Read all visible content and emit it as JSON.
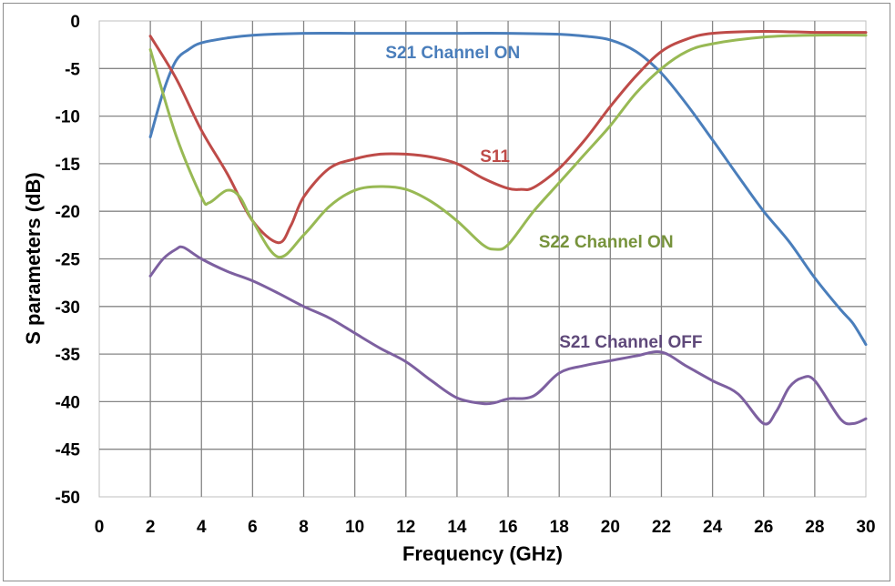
{
  "chart_data": {
    "type": "line",
    "title": "",
    "xlabel": "Frequency (GHz)",
    "ylabel": "S parameters (dB)",
    "xlim": [
      0,
      30
    ],
    "ylim": [
      -50,
      0
    ],
    "xticks": [
      0,
      2,
      4,
      6,
      8,
      10,
      12,
      14,
      16,
      18,
      20,
      22,
      24,
      26,
      28,
      30
    ],
    "yticks": [
      0,
      -5,
      -10,
      -15,
      -20,
      -25,
      -30,
      -35,
      -40,
      -45,
      -50
    ],
    "grid": true,
    "legend": "inline labels",
    "series": [
      {
        "name": "S21 Channel ON",
        "color": "#4a7ebb",
        "label_pos": [
          11.2,
          -3.9
        ],
        "x": [
          2,
          2.5,
          3,
          3.5,
          4,
          5,
          6,
          8,
          10,
          12,
          14,
          16,
          18,
          19,
          20,
          21,
          22,
          23,
          24,
          25,
          26,
          27,
          28,
          29,
          29.5,
          30
        ],
        "y": [
          -12.2,
          -7.5,
          -4.2,
          -3.0,
          -2.3,
          -1.8,
          -1.5,
          -1.3,
          -1.3,
          -1.3,
          -1.3,
          -1.3,
          -1.4,
          -1.6,
          -2.0,
          -3.2,
          -5.5,
          -8.8,
          -12.5,
          -16.3,
          -20.0,
          -23.2,
          -27.0,
          -30.3,
          -31.8,
          -34.0
        ]
      },
      {
        "name": "S11",
        "color": "#be4b48",
        "label_pos": [
          14.9,
          -14.8
        ],
        "x": [
          2,
          3,
          4,
          5,
          6,
          7,
          7.5,
          8,
          9,
          10,
          11,
          12,
          13,
          14,
          15,
          16,
          16.5,
          17,
          18,
          19,
          20,
          21,
          22,
          23,
          24,
          26,
          28,
          30
        ],
        "y": [
          -1.6,
          -6.0,
          -11.5,
          -16.0,
          -21.0,
          -23.3,
          -21.5,
          -18.5,
          -15.5,
          -14.5,
          -14.0,
          -14.0,
          -14.3,
          -15.0,
          -16.5,
          -17.6,
          -17.7,
          -17.5,
          -15.5,
          -12.5,
          -9.0,
          -5.8,
          -3.2,
          -1.9,
          -1.3,
          -1.1,
          -1.2,
          -1.2
        ]
      },
      {
        "name": "S22 Channel ON",
        "color": "#98b954",
        "label_color": "#77933c",
        "label_pos": [
          17.2,
          -23.8
        ],
        "x": [
          2,
          3,
          4,
          4.3,
          5,
          5.5,
          6,
          7,
          8,
          9,
          10,
          11,
          12,
          13,
          14,
          15,
          15.5,
          16,
          17,
          18,
          19,
          20,
          21,
          22,
          23,
          24,
          26,
          28,
          30
        ],
        "y": [
          -3.0,
          -12.0,
          -18.5,
          -19.1,
          -17.8,
          -18.5,
          -21.0,
          -24.8,
          -22.5,
          -19.5,
          -17.8,
          -17.4,
          -17.7,
          -19.0,
          -21.0,
          -23.5,
          -24.0,
          -23.5,
          -20.0,
          -17.0,
          -14.0,
          -11.0,
          -7.6,
          -5.0,
          -3.2,
          -2.4,
          -1.7,
          -1.5,
          -1.5
        ]
      },
      {
        "name": "S21 Channel OFF",
        "color": "#7d60a0",
        "label_color": "#5f497a",
        "label_pos": [
          18.0,
          -34.3
        ],
        "x": [
          2,
          2.5,
          3,
          3.3,
          4,
          5,
          6,
          7,
          8,
          9,
          10,
          11,
          12,
          13,
          14,
          15,
          15.5,
          16,
          17,
          18,
          19,
          20,
          21,
          22,
          23,
          24,
          25,
          26,
          26.5,
          27,
          27.5,
          28,
          29,
          29.5,
          30
        ],
        "y": [
          -26.8,
          -25.0,
          -24.0,
          -23.8,
          -25.0,
          -26.3,
          -27.3,
          -28.6,
          -30.0,
          -31.2,
          -32.8,
          -34.4,
          -35.8,
          -37.8,
          -39.6,
          -40.2,
          -40.1,
          -39.7,
          -39.4,
          -37.0,
          -36.2,
          -35.7,
          -35.2,
          -34.8,
          -36.3,
          -37.8,
          -39.2,
          -42.3,
          -41.0,
          -38.5,
          -37.5,
          -37.8,
          -41.8,
          -42.3,
          -41.8
        ]
      }
    ]
  }
}
